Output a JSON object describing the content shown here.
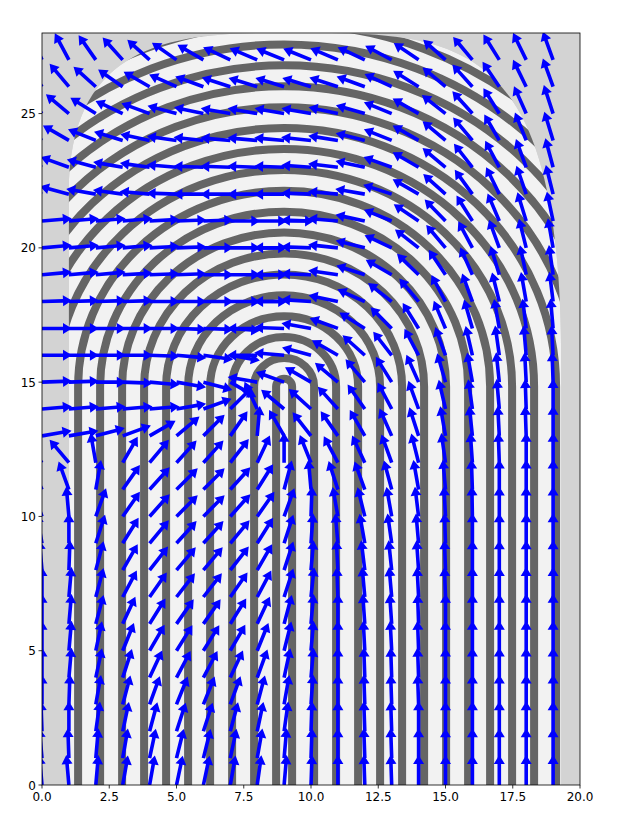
{
  "chart_data": {
    "type": "quiver",
    "color": "#0000ff",
    "grid": false,
    "xlim": [
      0,
      20
    ],
    "ylim": [
      0,
      28
    ],
    "xticks": [
      {
        "value": 0,
        "label": "0.0"
      },
      {
        "value": 2.5,
        "label": "2.5"
      },
      {
        "value": 5,
        "label": "5.0"
      },
      {
        "value": 7.5,
        "label": "7.5"
      },
      {
        "value": 10,
        "label": "10.0"
      },
      {
        "value": 12.5,
        "label": "12.5"
      },
      {
        "value": 15,
        "label": "15.0"
      },
      {
        "value": 17.5,
        "label": "17.5"
      },
      {
        "value": 20,
        "label": "20.0"
      }
    ],
    "yticks": [
      0,
      5,
      10,
      15,
      20,
      25
    ],
    "x": [
      0,
      1,
      2,
      3,
      4,
      5,
      6,
      7,
      8,
      9,
      10,
      11,
      12,
      13,
      14,
      15,
      16,
      17,
      18,
      19
    ],
    "y": [
      0,
      1,
      2,
      3,
      4,
      5,
      6,
      7,
      8,
      9,
      10,
      11,
      12,
      13,
      14,
      15,
      16,
      17,
      18,
      19,
      20,
      21,
      22,
      23,
      24,
      25,
      26,
      27
    ],
    "angles": [
      [
        95,
        95,
        85,
        80,
        80,
        78,
        78,
        80,
        82,
        85,
        88,
        90,
        92,
        92,
        90,
        90,
        90,
        90,
        90,
        90
      ],
      [
        95,
        92,
        85,
        80,
        78,
        76,
        76,
        78,
        80,
        85,
        88,
        90,
        92,
        92,
        90,
        90,
        90,
        90,
        90,
        90
      ],
      [
        92,
        90,
        82,
        78,
        75,
        72,
        72,
        75,
        78,
        82,
        88,
        90,
        92,
        92,
        90,
        90,
        90,
        90,
        90,
        90
      ],
      [
        90,
        88,
        80,
        75,
        70,
        68,
        68,
        70,
        75,
        80,
        86,
        90,
        92,
        92,
        92,
        90,
        90,
        90,
        90,
        90
      ],
      [
        90,
        85,
        78,
        72,
        65,
        62,
        62,
        65,
        70,
        78,
        85,
        90,
        92,
        92,
        92,
        90,
        90,
        90,
        90,
        90
      ],
      [
        90,
        85,
        78,
        68,
        60,
        58,
        58,
        60,
        68,
        76,
        85,
        90,
        93,
        93,
        92,
        90,
        90,
        90,
        90,
        90
      ],
      [
        90,
        85,
        75,
        65,
        58,
        55,
        55,
        58,
        65,
        75,
        85,
        90,
        94,
        94,
        92,
        90,
        90,
        90,
        90,
        90
      ],
      [
        90,
        85,
        75,
        62,
        55,
        52,
        52,
        55,
        62,
        72,
        84,
        92,
        95,
        95,
        93,
        92,
        90,
        90,
        90,
        90
      ],
      [
        95,
        88,
        75,
        60,
        52,
        50,
        50,
        52,
        60,
        72,
        85,
        93,
        97,
        96,
        94,
        92,
        90,
        90,
        90,
        90
      ],
      [
        100,
        90,
        72,
        58,
        50,
        48,
        48,
        50,
        58,
        72,
        86,
        95,
        100,
        98,
        95,
        92,
        90,
        90,
        90,
        90
      ],
      [
        110,
        95,
        70,
        55,
        48,
        45,
        45,
        48,
        55,
        70,
        88,
        100,
        104,
        100,
        97,
        93,
        91,
        90,
        90,
        90
      ],
      [
        115,
        110,
        80,
        55,
        48,
        45,
        45,
        48,
        58,
        75,
        95,
        108,
        110,
        105,
        100,
        95,
        92,
        90,
        90,
        90
      ],
      [
        130,
        130,
        100,
        60,
        50,
        48,
        48,
        52,
        65,
        90,
        112,
        118,
        115,
        110,
        104,
        98,
        94,
        92,
        90,
        90
      ],
      [
        10,
        10,
        15,
        20,
        30,
        40,
        45,
        55,
        85,
        120,
        128,
        125,
        120,
        114,
        108,
        100,
        96,
        93,
        92,
        90
      ],
      [
        5,
        5,
        5,
        5,
        5,
        10,
        20,
        45,
        115,
        140,
        138,
        132,
        125,
        118,
        110,
        103,
        98,
        95,
        92,
        90
      ],
      [
        2,
        2,
        0,
        -2,
        -5,
        -10,
        -15,
        -30,
        170,
        160,
        150,
        140,
        130,
        122,
        114,
        106,
        100,
        96,
        93,
        92
      ],
      [
        0,
        0,
        0,
        0,
        -2,
        -5,
        -8,
        -10,
        180,
        175,
        165,
        150,
        138,
        128,
        118,
        110,
        103,
        98,
        95,
        93
      ],
      [
        0,
        0,
        0,
        0,
        0,
        -2,
        -2,
        -4,
        180,
        178,
        170,
        160,
        148,
        135,
        122,
        113,
        106,
        100,
        97,
        95
      ],
      [
        2,
        2,
        2,
        2,
        0,
        0,
        0,
        0,
        0,
        180,
        176,
        168,
        156,
        142,
        130,
        118,
        110,
        104,
        100,
        97
      ],
      [
        5,
        5,
        5,
        3,
        2,
        2,
        0,
        0,
        0,
        180,
        178,
        172,
        162,
        150,
        136,
        124,
        114,
        107,
        102,
        98
      ],
      [
        5,
        5,
        5,
        5,
        3,
        2,
        0,
        0,
        0,
        180,
        178,
        174,
        166,
        155,
        142,
        130,
        118,
        110,
        104,
        100
      ],
      [
        5,
        5,
        5,
        5,
        3,
        2,
        2,
        0,
        0,
        0,
        178,
        175,
        168,
        158,
        146,
        134,
        122,
        113,
        107,
        102
      ],
      [
        160,
        165,
        170,
        172,
        175,
        178,
        180,
        180,
        180,
        180,
        178,
        175,
        170,
        162,
        150,
        138,
        126,
        116,
        109,
        104
      ],
      [
        155,
        160,
        165,
        170,
        172,
        175,
        178,
        178,
        178,
        178,
        176,
        173,
        168,
        160,
        150,
        140,
        128,
        118,
        110,
        105
      ],
      [
        145,
        150,
        158,
        163,
        168,
        172,
        174,
        175,
        175,
        175,
        174,
        171,
        166,
        158,
        150,
        140,
        130,
        120,
        112,
        107
      ],
      [
        135,
        140,
        148,
        155,
        160,
        165,
        168,
        170,
        170,
        170,
        170,
        168,
        164,
        158,
        150,
        142,
        132,
        122,
        114,
        108
      ],
      [
        125,
        130,
        138,
        145,
        150,
        156,
        160,
        162,
        163,
        163,
        163,
        162,
        160,
        155,
        148,
        140,
        132,
        124,
        116,
        110
      ],
      [
        115,
        118,
        125,
        132,
        138,
        145,
        150,
        155,
        157,
        158,
        158,
        157,
        155,
        152,
        146,
        138,
        130,
        122,
        116,
        110
      ]
    ]
  }
}
